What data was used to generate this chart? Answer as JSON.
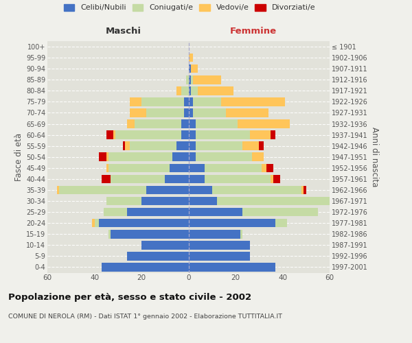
{
  "age_groups": [
    "100+",
    "95-99",
    "90-94",
    "85-89",
    "80-84",
    "75-79",
    "70-74",
    "65-69",
    "60-64",
    "55-59",
    "50-54",
    "45-49",
    "40-44",
    "35-39",
    "30-34",
    "25-29",
    "20-24",
    "15-19",
    "10-14",
    "5-9",
    "0-4"
  ],
  "birth_years": [
    "≤ 1901",
    "1902-1906",
    "1907-1911",
    "1912-1916",
    "1917-1921",
    "1922-1926",
    "1927-1931",
    "1932-1936",
    "1937-1941",
    "1942-1946",
    "1947-1951",
    "1952-1956",
    "1957-1961",
    "1962-1966",
    "1967-1971",
    "1972-1976",
    "1977-1981",
    "1982-1986",
    "1987-1991",
    "1992-1996",
    "1997-2001"
  ],
  "maschi": {
    "celibe": [
      0,
      0,
      0,
      0,
      0,
      2,
      2,
      3,
      3,
      5,
      7,
      8,
      10,
      18,
      20,
      26,
      38,
      33,
      20,
      26,
      37
    ],
    "coniugato": [
      0,
      0,
      0,
      1,
      3,
      18,
      16,
      20,
      28,
      20,
      27,
      26,
      23,
      37,
      15,
      10,
      2,
      1,
      0,
      0,
      0
    ],
    "vedovo": [
      0,
      0,
      0,
      0,
      2,
      5,
      7,
      3,
      1,
      2,
      1,
      1,
      0,
      1,
      0,
      0,
      1,
      0,
      0,
      0,
      0
    ],
    "divorziato": [
      0,
      0,
      0,
      0,
      0,
      0,
      0,
      0,
      3,
      1,
      3,
      0,
      4,
      0,
      0,
      0,
      0,
      0,
      0,
      0,
      0
    ]
  },
  "femmine": {
    "celibe": [
      0,
      0,
      1,
      1,
      1,
      2,
      2,
      3,
      3,
      3,
      3,
      7,
      7,
      10,
      12,
      23,
      37,
      22,
      26,
      26,
      37
    ],
    "coniugata": [
      0,
      0,
      0,
      1,
      3,
      12,
      14,
      18,
      23,
      20,
      24,
      24,
      28,
      38,
      53,
      32,
      5,
      1,
      0,
      0,
      0
    ],
    "vedova": [
      0,
      2,
      3,
      12,
      15,
      27,
      18,
      22,
      9,
      7,
      5,
      2,
      1,
      1,
      1,
      0,
      0,
      0,
      0,
      0,
      0
    ],
    "divorziata": [
      0,
      0,
      0,
      0,
      0,
      0,
      0,
      0,
      2,
      2,
      0,
      3,
      3,
      1,
      0,
      0,
      0,
      0,
      0,
      0,
      0
    ]
  },
  "colors": {
    "celibe": "#4472c4",
    "coniugato": "#c5dba4",
    "vedovo": "#ffc55a",
    "divorziato": "#cc0000"
  },
  "xlim": 60,
  "title": "Popolazione per età, sesso e stato civile - 2002",
  "subtitle": "COMUNE DI NEROLA (RM) - Dati ISTAT 1° gennaio 2002 - Elaborazione TUTTITALIA.IT",
  "ylabel_left": "Fasce di età",
  "ylabel_right": "Anni di nascita",
  "xlabel_left": "Maschi",
  "xlabel_right": "Femmine",
  "legend_labels": [
    "Celibi/Nubili",
    "Coniugati/e",
    "Vedovi/e",
    "Divorziati/e"
  ],
  "background_color": "#f0f0eb",
  "plot_bg_color": "#e2e2da"
}
